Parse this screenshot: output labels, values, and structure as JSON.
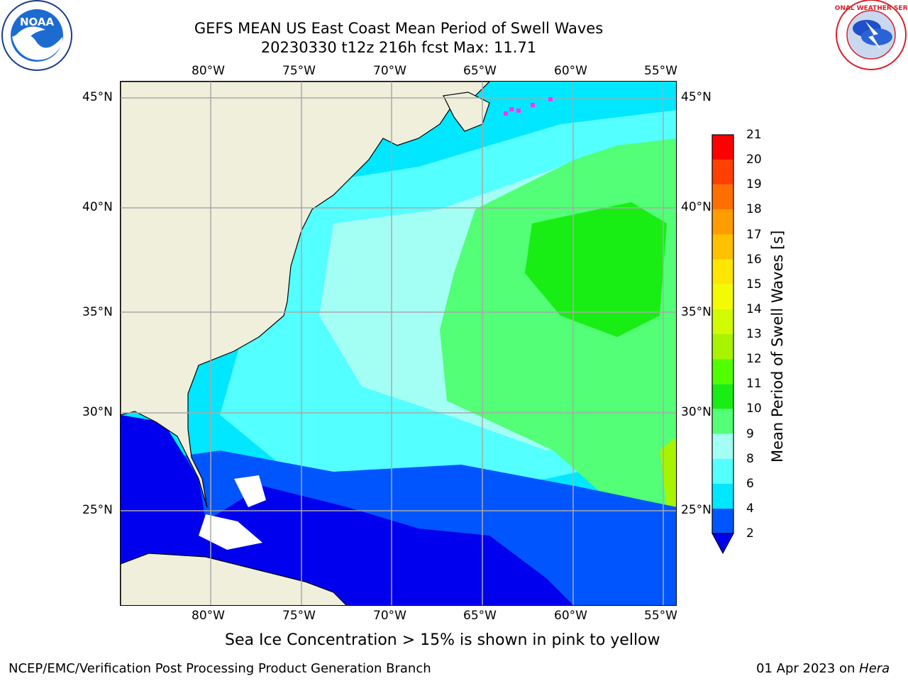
{
  "title": {
    "line1": "GEFS MEAN US East Coast Mean Period of Swell Waves",
    "line2": "20230330 t12z 216h fcst   Max: 11.71"
  },
  "logos": {
    "left_text": "NOAA",
    "left_ring": "NATIONAL OCEANIC AND ATMOSPHERIC ADMINISTRATION · U.S. DEPARTMENT OF COMMERCE",
    "right_ring": "NATIONAL WEATHER SERVICE"
  },
  "map": {
    "lon_labels_top": [
      "80°W",
      "75°W",
      "70°W",
      "65°W",
      "60°W",
      "55°W"
    ],
    "lon_labels_bottom": [
      "80°W",
      "75°W",
      "70°W",
      "65°W",
      "60°W",
      "55°W"
    ],
    "lat_labels_left": [
      "45°N",
      "40°N",
      "35°N",
      "30°N",
      "25°N"
    ],
    "lat_labels_right": [
      "45°N",
      "40°N",
      "35°N",
      "30°N",
      "25°N"
    ],
    "lon_range": [
      -85,
      -54.3
    ],
    "lat_range": [
      20.5,
      45.8
    ]
  },
  "colorbar": {
    "label": "Mean Period of Swell Waves [s]",
    "ticks": [
      "2",
      "4",
      "6",
      "8",
      "9",
      "10",
      "11",
      "12",
      "13",
      "14",
      "15",
      "16",
      "17",
      "18",
      "19",
      "20",
      "21"
    ],
    "colors": [
      "#0055ff",
      "#00e7ff",
      "#53ffff",
      "#a3fff4",
      "#52ff76",
      "#18ee14",
      "#52ff00",
      "#a8f400",
      "#d2fa00",
      "#f2fb00",
      "#ffe600",
      "#ffc000",
      "#ff9c00",
      "#ff6f00",
      "#ff4000",
      "#ff0000"
    ],
    "under_color": "#0000ee"
  },
  "note": "Sea Ice Concentration > 15% is shown in pink to yellow",
  "footer": {
    "left": "NCEP/EMC/Verification Post Processing Product Generation Branch",
    "right_date": "01 Apr 2023 on ",
    "right_host": "Hera"
  }
}
